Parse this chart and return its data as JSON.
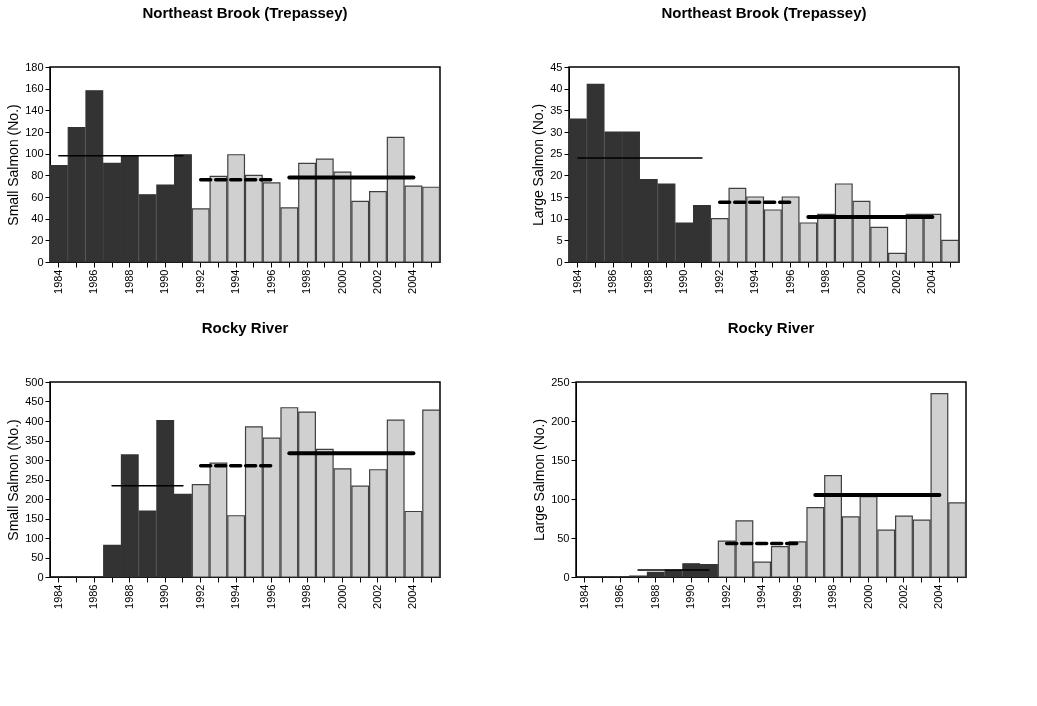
{
  "chart_data": [
    {
      "type": "bar",
      "title": "Northeast Brook (Trepassey)",
      "ylabel": "Small Salmon  (No.)",
      "categories": [
        "1984",
        null,
        "1986",
        null,
        "1988",
        null,
        "1990",
        null,
        "1992",
        null,
        "1994",
        null,
        "1996",
        null,
        "1998",
        null,
        "2000",
        null,
        "2002",
        null,
        "2004",
        null
      ],
      "ylim": [
        0,
        180
      ],
      "yticks": [
        0,
        20,
        40,
        60,
        80,
        100,
        120,
        140,
        160,
        180
      ],
      "grid": false,
      "series": [
        {
          "color": "#333333",
          "values": [
            89,
            124,
            158,
            91,
            98,
            62,
            71,
            99,
            null,
            null,
            null,
            null,
            null,
            null,
            null,
            null,
            null,
            null,
            null,
            null,
            null,
            null
          ]
        },
        {
          "color": "#d0d0d0",
          "values": [
            null,
            null,
            null,
            null,
            null,
            null,
            null,
            null,
            49,
            79,
            99,
            80,
            73,
            50,
            91,
            95,
            83,
            56,
            65,
            115,
            70,
            69
          ]
        },
        {
          "type": "line",
          "color": "#000000",
          "line_style": "solid",
          "values": [
            98,
            98,
            98,
            98,
            98,
            98,
            98,
            98,
            null,
            null,
            null,
            null,
            null,
            null,
            null,
            null,
            null,
            null,
            null,
            null,
            null,
            null
          ]
        },
        {
          "type": "line",
          "color": "#000000",
          "line_style": "dashed",
          "values": [
            null,
            null,
            null,
            null,
            null,
            null,
            null,
            null,
            76,
            76,
            76,
            76,
            76,
            null,
            null,
            null,
            null,
            null,
            null,
            null,
            null,
            null
          ]
        },
        {
          "type": "line",
          "color": "#000000",
          "line_style": "solid",
          "values": [
            null,
            null,
            null,
            null,
            null,
            null,
            null,
            null,
            null,
            null,
            null,
            null,
            null,
            78,
            78,
            78,
            78,
            78,
            78,
            78,
            78,
            null
          ]
        }
      ]
    },
    {
      "type": "bar",
      "title": "Northeast Brook (Trepassey)",
      "ylabel": "Large Salmon  (No.)",
      "categories": [
        "1984",
        null,
        "1986",
        null,
        "1988",
        null,
        "1990",
        null,
        "1992",
        null,
        "1994",
        null,
        "1996",
        null,
        "1998",
        null,
        "2000",
        null,
        "2002",
        null,
        "2004",
        null
      ],
      "ylim": [
        0,
        45
      ],
      "yticks": [
        0,
        5,
        10,
        15,
        20,
        25,
        30,
        35,
        40,
        45
      ],
      "grid": false,
      "series": [
        {
          "color": "#333333",
          "values": [
            33,
            41,
            30,
            30,
            19,
            18,
            9,
            13,
            null,
            null,
            null,
            null,
            null,
            null,
            null,
            null,
            null,
            null,
            null,
            null,
            null,
            null
          ]
        },
        {
          "color": "#d0d0d0",
          "values": [
            null,
            null,
            null,
            null,
            null,
            null,
            null,
            null,
            10,
            17,
            15,
            12,
            15,
            9,
            11,
            18,
            14,
            8,
            2,
            11,
            11,
            5
          ]
        },
        {
          "type": "line",
          "color": "#000000",
          "line_style": "solid",
          "values": [
            24,
            24,
            24,
            24,
            24,
            24,
            24,
            24,
            null,
            null,
            null,
            null,
            null,
            null,
            null,
            null,
            null,
            null,
            null,
            null,
            null,
            null
          ]
        },
        {
          "type": "line",
          "color": "#000000",
          "line_style": "dashed",
          "values": [
            null,
            null,
            null,
            null,
            null,
            null,
            null,
            null,
            13.8,
            13.8,
            13.8,
            13.8,
            13.8,
            null,
            null,
            null,
            null,
            null,
            null,
            null,
            null,
            null
          ]
        },
        {
          "type": "line",
          "color": "#000000",
          "line_style": "solid",
          "values": [
            null,
            null,
            null,
            null,
            null,
            null,
            null,
            null,
            null,
            null,
            null,
            null,
            null,
            10.4,
            10.4,
            10.4,
            10.4,
            10.4,
            10.4,
            10.4,
            10.4,
            null
          ]
        }
      ]
    },
    {
      "type": "bar",
      "title": "Rocky River",
      "ylabel": "Small Salmon  (No.)",
      "categories": [
        "1984",
        null,
        "1986",
        null,
        "1988",
        null,
        "1990",
        null,
        "1992",
        null,
        "1994",
        null,
        "1996",
        null,
        "1998",
        null,
        "2000",
        null,
        "2002",
        null,
        "2004",
        null
      ],
      "ylim": [
        0,
        500
      ],
      "yticks": [
        0,
        50,
        100,
        150,
        200,
        250,
        300,
        350,
        400,
        450,
        500
      ],
      "grid": false,
      "series": [
        {
          "color": "#333333",
          "values": [
            0,
            0,
            0,
            81,
            313,
            169,
            401,
            212,
            null,
            null,
            null,
            null,
            null,
            null,
            null,
            null,
            null,
            null,
            null,
            null,
            null,
            null
          ]
        },
        {
          "color": "#d0d0d0",
          "values": [
            null,
            null,
            null,
            null,
            null,
            null,
            null,
            null,
            237,
            292,
            157,
            385,
            356,
            434,
            423,
            327,
            277,
            233,
            275,
            402,
            168,
            428
          ]
        },
        {
          "type": "line",
          "color": "#000000",
          "line_style": "solid",
          "values": [
            null,
            null,
            null,
            234,
            234,
            234,
            234,
            234,
            null,
            null,
            null,
            null,
            null,
            null,
            null,
            null,
            null,
            null,
            null,
            null,
            null,
            null
          ]
        },
        {
          "type": "line",
          "color": "#000000",
          "line_style": "dashed",
          "values": [
            null,
            null,
            null,
            null,
            null,
            null,
            null,
            null,
            285,
            285,
            285,
            285,
            285,
            null,
            null,
            null,
            null,
            null,
            null,
            null,
            null,
            null
          ]
        },
        {
          "type": "line",
          "color": "#000000",
          "line_style": "solid",
          "values": [
            null,
            null,
            null,
            null,
            null,
            null,
            null,
            null,
            null,
            null,
            null,
            null,
            null,
            317,
            317,
            317,
            317,
            317,
            317,
            317,
            317,
            null
          ]
        }
      ]
    },
    {
      "type": "bar",
      "title": "Rocky River",
      "ylabel": "Large Salmon  (No.)",
      "categories": [
        "1984",
        null,
        "1986",
        null,
        "1988",
        null,
        "1990",
        null,
        "1992",
        null,
        "1994",
        null,
        "1996",
        null,
        "1998",
        null,
        "2000",
        null,
        "2002",
        null,
        "2004",
        null
      ],
      "ylim": [
        0,
        250
      ],
      "yticks": [
        0,
        50,
        100,
        150,
        200,
        250
      ],
      "grid": false,
      "series": [
        {
          "color": "#333333",
          "values": [
            0,
            0,
            0,
            1,
            6,
            9,
            17,
            16,
            null,
            null,
            null,
            null,
            null,
            null,
            null,
            null,
            null,
            null,
            null,
            null,
            null,
            null
          ]
        },
        {
          "color": "#d0d0d0",
          "values": [
            null,
            null,
            null,
            null,
            null,
            null,
            null,
            null,
            46,
            72,
            19,
            39,
            45,
            89,
            130,
            77,
            103,
            60,
            78,
            73,
            235,
            95
          ]
        },
        {
          "type": "line",
          "color": "#000000",
          "line_style": "solid",
          "values": [
            null,
            null,
            null,
            9,
            9,
            9,
            9,
            9,
            null,
            null,
            null,
            null,
            null,
            null,
            null,
            null,
            null,
            null,
            null,
            null,
            null,
            null
          ]
        },
        {
          "type": "line",
          "color": "#000000",
          "line_style": "dashed",
          "values": [
            null,
            null,
            null,
            null,
            null,
            null,
            null,
            null,
            43,
            43,
            43,
            43,
            43,
            null,
            null,
            null,
            null,
            null,
            null,
            null,
            null,
            null
          ]
        },
        {
          "type": "line",
          "color": "#000000",
          "line_style": "solid",
          "values": [
            null,
            null,
            null,
            null,
            null,
            null,
            null,
            null,
            null,
            null,
            null,
            null,
            null,
            105,
            105,
            105,
            105,
            105,
            105,
            105,
            105,
            null
          ]
        }
      ]
    }
  ]
}
